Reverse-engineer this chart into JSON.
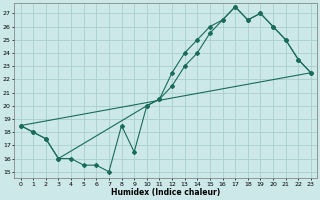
{
  "xlabel": "Humidex (Indice chaleur)",
  "xlim": [
    -0.5,
    23.5
  ],
  "ylim": [
    14.5,
    27.8
  ],
  "xticks": [
    0,
    1,
    2,
    3,
    4,
    5,
    6,
    7,
    8,
    9,
    10,
    11,
    12,
    13,
    14,
    15,
    16,
    17,
    18,
    19,
    20,
    21,
    22,
    23
  ],
  "yticks": [
    15,
    16,
    17,
    18,
    19,
    20,
    21,
    22,
    23,
    24,
    25,
    26,
    27
  ],
  "bg_color": "#cce8e8",
  "grid_color": "#aacfcf",
  "line_color": "#1a6b5a",
  "line1_x": [
    0,
    1,
    2,
    3,
    4,
    5,
    6,
    7,
    8,
    9,
    10,
    11,
    12,
    13,
    14,
    15,
    16,
    17,
    18,
    19,
    20,
    21,
    22,
    23
  ],
  "line1_y": [
    18.5,
    18.0,
    17.5,
    16.0,
    16.0,
    15.5,
    15.5,
    15.0,
    18.5,
    16.5,
    20.0,
    20.5,
    22.5,
    24.0,
    25.0,
    26.0,
    26.5,
    27.5,
    26.5,
    27.0,
    26.0,
    25.0,
    23.5,
    22.5
  ],
  "line2_x": [
    0,
    1,
    2,
    3,
    10,
    11,
    12,
    13,
    14,
    15,
    16,
    17,
    18,
    19,
    20,
    21,
    22,
    23
  ],
  "line2_y": [
    18.5,
    18.0,
    17.5,
    16.0,
    20.0,
    20.5,
    21.5,
    23.0,
    24.0,
    25.5,
    26.5,
    27.5,
    26.5,
    27.0,
    26.0,
    25.0,
    23.5,
    22.5
  ],
  "line3_x": [
    0,
    23
  ],
  "line3_y": [
    18.5,
    22.5
  ]
}
